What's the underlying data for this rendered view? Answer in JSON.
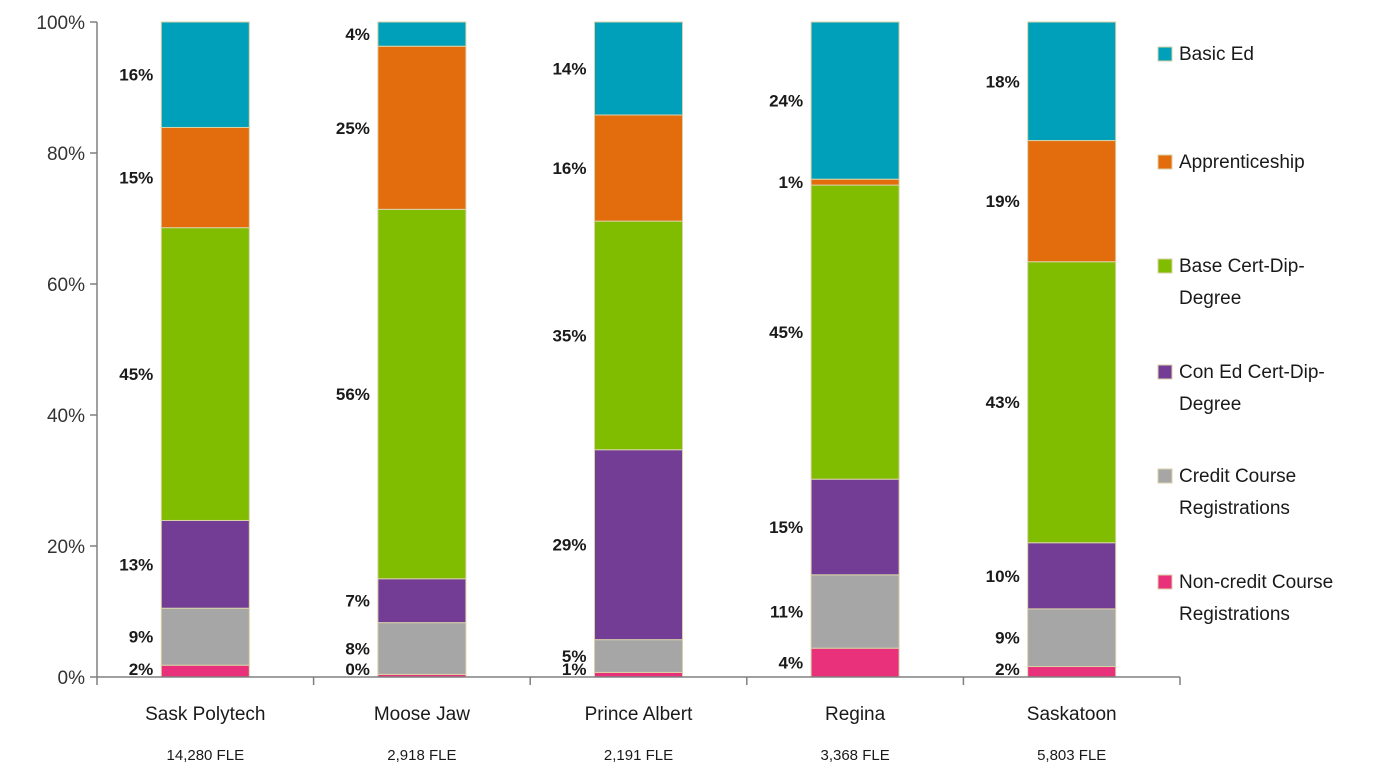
{
  "chart_data": {
    "type": "bar",
    "stacked": true,
    "percent": true,
    "categories": [
      "Sask Polytech",
      "Moose Jaw",
      "Prince Albert",
      "Regina",
      "Saskatoon"
    ],
    "category_sublabels": [
      "14,280 FLE",
      "2,918 FLE",
      "2,191 FLE",
      "3,368 FLE",
      "5,803 FLE"
    ],
    "ylim": [
      0,
      100
    ],
    "yticks": [
      "0%",
      "20%",
      "40%",
      "60%",
      "80%",
      "100%"
    ],
    "grid": false,
    "legend_position": "right",
    "series": [
      {
        "name": "Non-credit Course Registrations",
        "color": "#e8317a",
        "values": [
          1.8,
          0.4,
          0.7,
          4.4,
          1.6
        ],
        "labels": [
          "2%",
          "0%",
          "1%",
          "4%",
          "2%"
        ]
      },
      {
        "name": "Credit Course Registrations",
        "color": "#a6a6a6",
        "values": [
          8.7,
          7.9,
          5.0,
          11.2,
          8.8
        ],
        "labels": [
          "9%",
          "8%",
          "5%",
          "11%",
          "9%"
        ]
      },
      {
        "name": "Con Ed Cert-Dip-Degree",
        "color": "#733d96",
        "values": [
          13.4,
          6.7,
          29.0,
          14.6,
          10.1
        ],
        "labels": [
          "13%",
          "7%",
          "29%",
          "15%",
          "10%"
        ]
      },
      {
        "name": "Base Cert-Dip-Degree",
        "color": "#80bc00",
        "values": [
          44.7,
          56.4,
          34.9,
          44.9,
          42.9
        ],
        "labels": [
          "45%",
          "56%",
          "35%",
          "45%",
          "43%"
        ]
      },
      {
        "name": "Apprenticeship",
        "color": "#e36c0d",
        "values": [
          15.3,
          24.9,
          16.2,
          0.9,
          18.5
        ],
        "labels": [
          "15%",
          "25%",
          "16%",
          "1%",
          "19%"
        ]
      },
      {
        "name": "Basic Ed",
        "color": "#00a0ba",
        "values": [
          16.1,
          3.7,
          14.2,
          24.0,
          18.1
        ],
        "labels": [
          "16%",
          "4%",
          "14%",
          "24%",
          "18%"
        ]
      }
    ],
    "legend_order": [
      "Basic Ed",
      "Apprenticeship",
      "Base Cert-Dip-Degree",
      "Con Ed Cert-Dip-Degree",
      "Credit Course Registrations",
      "Non-credit Course Registrations"
    ]
  }
}
